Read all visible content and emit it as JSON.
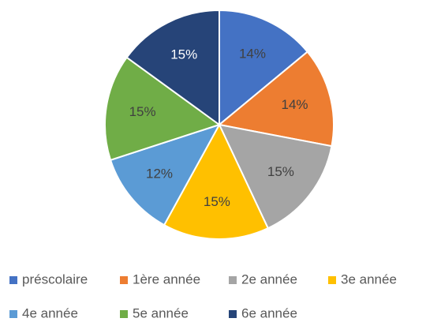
{
  "chart_data": {
    "type": "pie",
    "categories": [
      "préscolaire",
      "1ère année",
      "2e année",
      "3e année",
      "4e année",
      "5e année",
      "6e année"
    ],
    "values": [
      14,
      14,
      15,
      15,
      12,
      15,
      15
    ],
    "value_labels": [
      "14%",
      "14%",
      "15%",
      "15%",
      "12%",
      "15%",
      "15%"
    ],
    "colors": [
      "#4472c4",
      "#ed7d31",
      "#a5a5a5",
      "#ffc000",
      "#5b9bd5",
      "#70ad47",
      "#264478"
    ],
    "legend": "bottom"
  }
}
